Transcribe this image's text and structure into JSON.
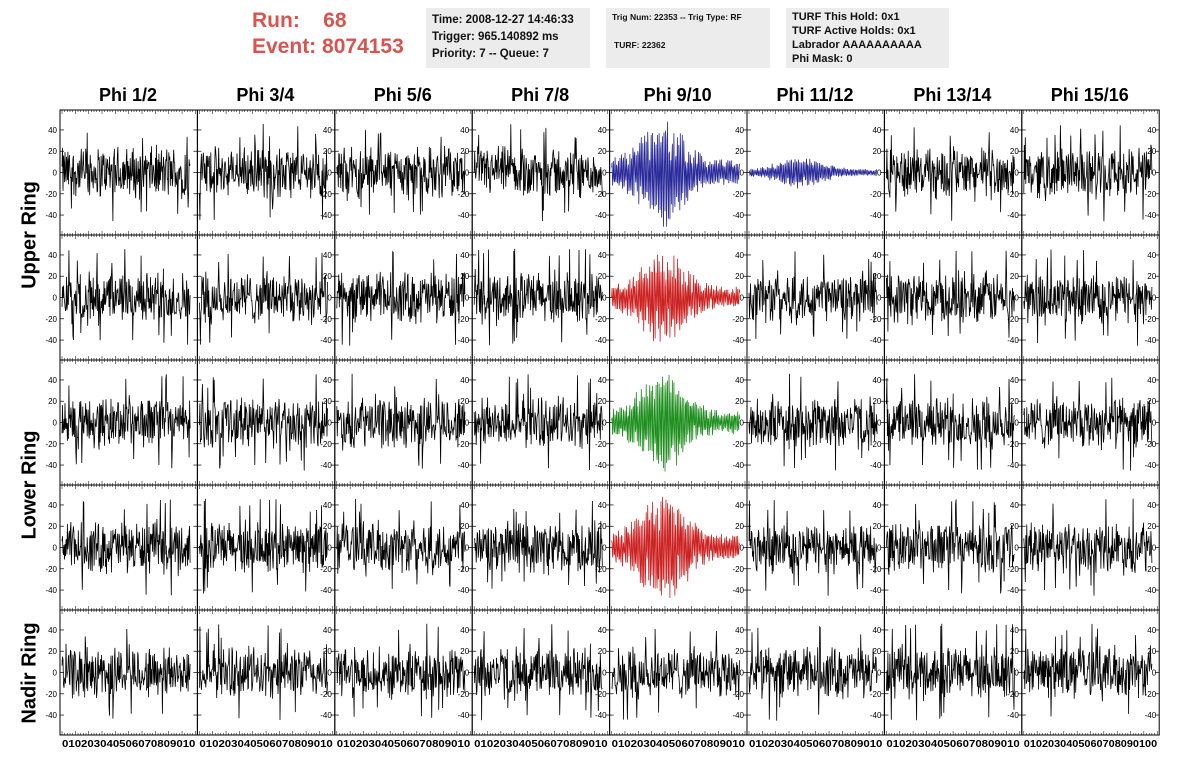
{
  "header": {
    "run_label": "Run:",
    "run_value": "68",
    "event_label": "Event:",
    "event_value": "8074153",
    "info1": [
      "Time: 2008-12-27 14:46:33",
      "Trigger: 965.140892 ms",
      "Priority: 7 -- Queue: 7"
    ],
    "info2_line1": "Trig Num: 22353 -- Trig Type: RF",
    "info2_line2": "TURF: 22362",
    "info3": [
      "TURF This Hold: 0x1",
      "TURF Active Holds: 0x1",
      "Labrador AAAAAAAAAA",
      "Phi Mask: 0"
    ]
  },
  "columns": [
    "Phi 1/2",
    "Phi 3/4",
    "Phi 5/6",
    "Phi 7/8",
    "Phi 9/10",
    "Phi 11/12",
    "Phi 13/14",
    "Phi 15/16"
  ],
  "rows": [
    {
      "label": "Upper Ring",
      "rows_span": [
        0,
        1
      ]
    },
    {
      "label": "Lower Ring",
      "rows_span": [
        2,
        3
      ]
    },
    {
      "label": "Nadir Ring",
      "rows_span": [
        4,
        4
      ]
    }
  ],
  "colors": {
    "default_trace": "#000000",
    "highlight_blue": "#2a2a9a",
    "highlight_red": "#cc2222",
    "highlight_green": "#1f8f1f",
    "run_text": "#d9534f"
  },
  "chart_data": {
    "type": "line",
    "description_grid": "5 rows x 8 columns of waveform traces",
    "xlim": [
      0,
      100
    ],
    "ylim": [
      -55,
      55
    ],
    "y_ticks": [
      -40,
      -20,
      0,
      20,
      40
    ],
    "x_ticks": [
      0,
      10,
      20,
      30,
      40,
      50,
      60,
      70,
      80,
      90,
      100
    ],
    "x_axis_labels_per_column": [
      "0 10 20 30 40 50 60 70 80 90 10",
      "0 10 20 30 40 50 60 70 80 90 10",
      "0 10 20 30 40 50 60 70 80 90 10",
      "0 10 20 30 40 50 60 70 80 90 10",
      "0 10 20 30 40 50 60 70 80 90 10",
      "0 10 20 30 40 50 60 70 80 90 10",
      "0 10 20 30 40 50 60 70 80 90 10",
      "0 10 20 30 40 50 60 70 80 90 100"
    ],
    "highlighted_traces": [
      {
        "row": 0,
        "col": 4,
        "color": "blue",
        "amplitude": 48
      },
      {
        "row": 0,
        "col": 5,
        "color": "blue",
        "amplitude": 14
      },
      {
        "row": 1,
        "col": 4,
        "color": "red",
        "amplitude": 42
      },
      {
        "row": 2,
        "col": 4,
        "color": "green",
        "amplitude": 45
      },
      {
        "row": 3,
        "col": 4,
        "color": "red",
        "amplitude": 50
      }
    ],
    "trace_samples": 260,
    "trace_x_range": [
      0,
      96
    ]
  }
}
